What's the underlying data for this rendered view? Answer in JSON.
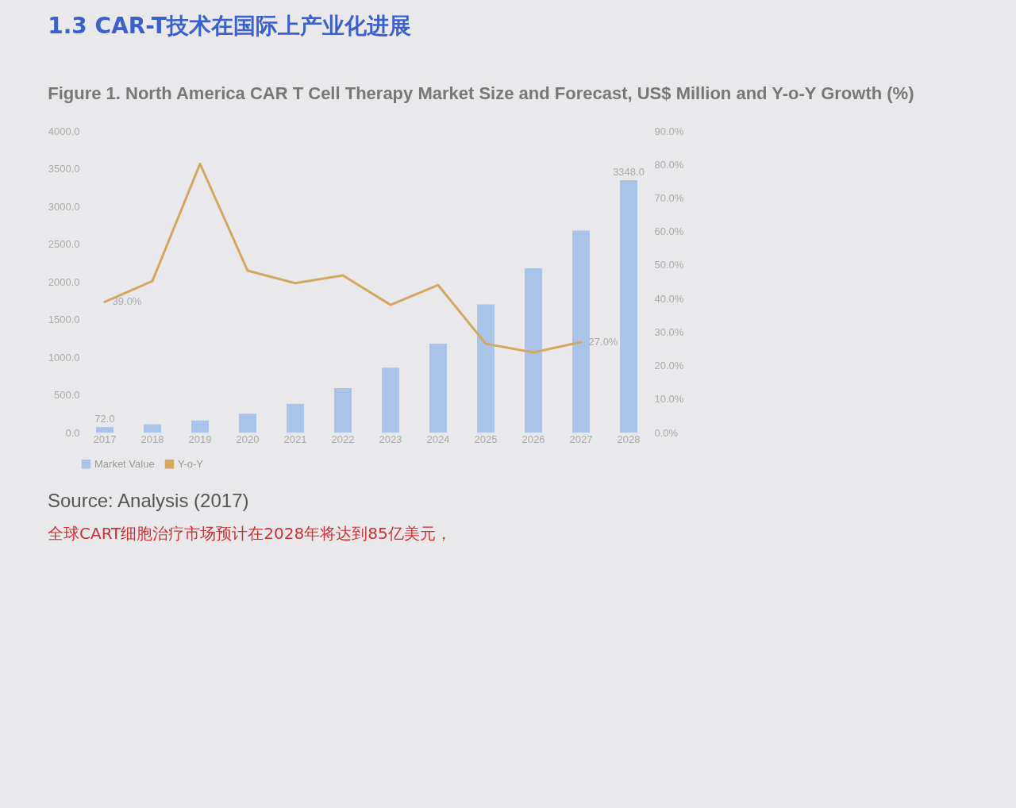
{
  "chart_data": {
    "type": "bar",
    "title": "1.3 CAR-T技术在国际上产业化进展",
    "subtitle": "Figure 1. North America CAR T Cell Therapy Market Size and Forecast, US$ Million and Y-o-Y Growth (%)",
    "categories": [
      "2017",
      "2018",
      "2019",
      "2020",
      "2021",
      "2022",
      "2023",
      "2024",
      "2025",
      "2026",
      "2027",
      "2028"
    ],
    "series": [
      {
        "name": "Market Value",
        "color": "#a9c4e8",
        "values": [
          72,
          110,
          160,
          250,
          380,
          590,
          860,
          1180,
          1700,
          2180,
          2680,
          3348
        ],
        "value_labels": [
          "72.0",
          null,
          null,
          null,
          null,
          null,
          null,
          null,
          null,
          null,
          null,
          "3348.0"
        ]
      },
      {
        "name": "Y-o-Y",
        "type": "line",
        "axis": "y2",
        "color": "#d4a860",
        "values": [
          39.0,
          45.2,
          80.2,
          48.3,
          44.6,
          46.9,
          38.1,
          44.0,
          26.5,
          23.9,
          27.0,
          null
        ],
        "value_labels": [
          "39.0%",
          null,
          null,
          null,
          null,
          null,
          null,
          null,
          null,
          null,
          "27.0%",
          null
        ]
      }
    ],
    "ylim": [
      0,
      4000
    ],
    "yticks": [
      {
        "value": 0,
        "label": "0.0"
      },
      {
        "value": 500,
        "label": "500.0"
      },
      {
        "value": 1000,
        "label": "1000.0"
      },
      {
        "value": 1500,
        "label": "1500.0"
      },
      {
        "value": 2000,
        "label": "2000.0"
      },
      {
        "value": 2500,
        "label": "2500.0"
      },
      {
        "value": 3000,
        "label": "3000.0"
      },
      {
        "value": 3500,
        "label": "3500.0"
      },
      {
        "value": 4000,
        "label": "4000.0"
      }
    ],
    "y2lim": [
      0,
      90
    ],
    "y2ticks": [
      {
        "value": 0,
        "label": "0.0%"
      },
      {
        "value": 10,
        "label": "10.0%"
      },
      {
        "value": 20,
        "label": "20.0%"
      },
      {
        "value": 30,
        "label": "30.0%"
      },
      {
        "value": 40,
        "label": "40.0%"
      },
      {
        "value": 50,
        "label": "50.0%"
      },
      {
        "value": 60,
        "label": "60.0%"
      },
      {
        "value": 70,
        "label": "70.0%"
      },
      {
        "value": 80,
        "label": "80.0%"
      },
      {
        "value": 90,
        "label": "90.0%"
      }
    ],
    "legend": "bottom",
    "annotations": [
      "Source: Analysis (2017)",
      "全球CART细胞治疗市场预计在2028年将达到85亿美元，"
    ]
  }
}
